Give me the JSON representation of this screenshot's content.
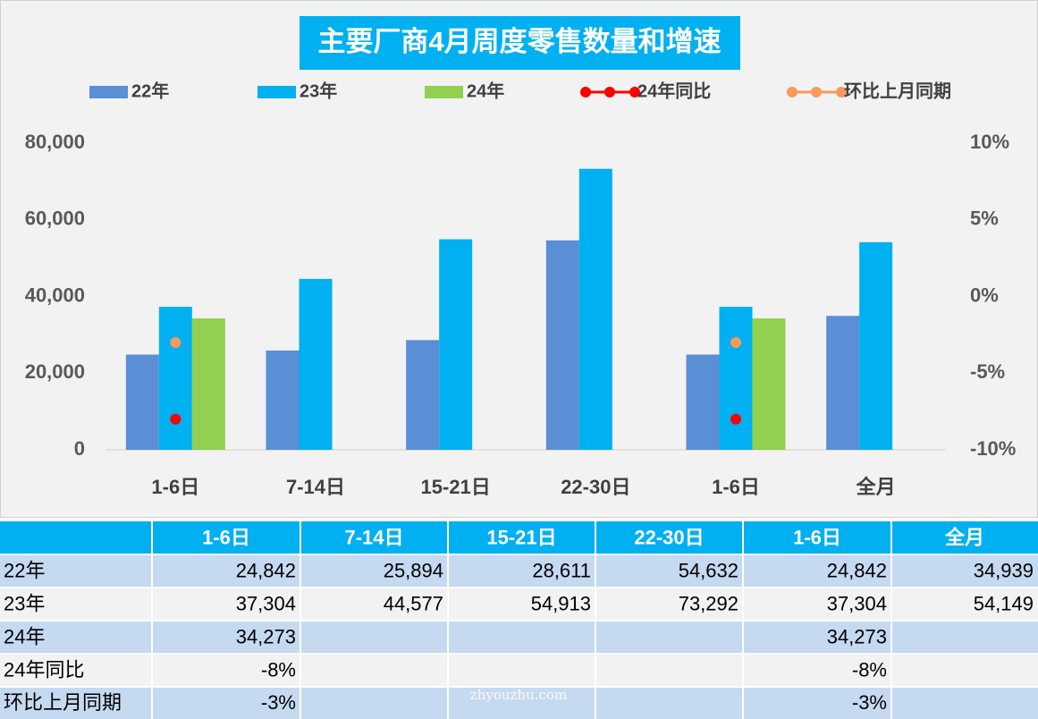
{
  "chart_data": {
    "type": "bar",
    "title": "主要厂商4月周度零售数量和增速",
    "categories": [
      "1-6日",
      "7-14日",
      "15-21日",
      "22-30日",
      "1-6日",
      "全月"
    ],
    "series": [
      {
        "name": "22年",
        "type": "bar",
        "color": "#5a8fd5",
        "values": [
          24842,
          25894,
          28611,
          54632,
          24842,
          34939
        ]
      },
      {
        "name": "23年",
        "type": "bar",
        "color": "#00b0f0",
        "values": [
          37304,
          44577,
          54913,
          73292,
          37304,
          54149
        ]
      },
      {
        "name": "24年",
        "type": "bar",
        "color": "#92d050",
        "values": [
          34273,
          null,
          null,
          null,
          34273,
          null
        ]
      },
      {
        "name": "24年同比",
        "type": "line",
        "axis": "y2",
        "color": "#ff0000",
        "values": [
          -8,
          null,
          null,
          null,
          -8,
          null
        ]
      },
      {
        "name": "环比上月同期",
        "type": "line",
        "axis": "y2",
        "color": "#f79a5a",
        "values": [
          -3,
          null,
          null,
          null,
          -3,
          null
        ]
      }
    ],
    "ylim": [
      0,
      80000
    ],
    "yticks": [
      0,
      {
        "value": 20000,
        "label": "20,000"
      },
      {
        "value": 40000,
        "label": "40,000"
      },
      {
        "value": 60000,
        "label": "60,000"
      },
      {
        "value": 80000,
        "label": "80,000"
      }
    ],
    "y2lim": [
      -10,
      10
    ],
    "y2ticks": [
      {
        "value": -10,
        "label": "-10%"
      },
      {
        "value": -5,
        "label": "-5%"
      },
      {
        "value": 0,
        "label": "0%"
      },
      {
        "value": 5,
        "label": "5%"
      },
      {
        "value": 10,
        "label": "10%"
      }
    ],
    "grid": false,
    "legend": "top"
  },
  "table": {
    "rows": [
      [
        "24,842",
        "25,894",
        "28,611",
        "54,632",
        "24,842",
        "34,939"
      ],
      [
        "37,304",
        "44,577",
        "54,913",
        "73,292",
        "37,304",
        "54,149"
      ],
      [
        "34,273",
        null,
        null,
        null,
        "34,273",
        null
      ],
      [
        "-8%",
        null,
        null,
        null,
        "-8%",
        null
      ],
      [
        "-3%",
        null,
        null,
        null,
        "-3%",
        null
      ]
    ]
  },
  "watermark": "zhyouzhu.com"
}
